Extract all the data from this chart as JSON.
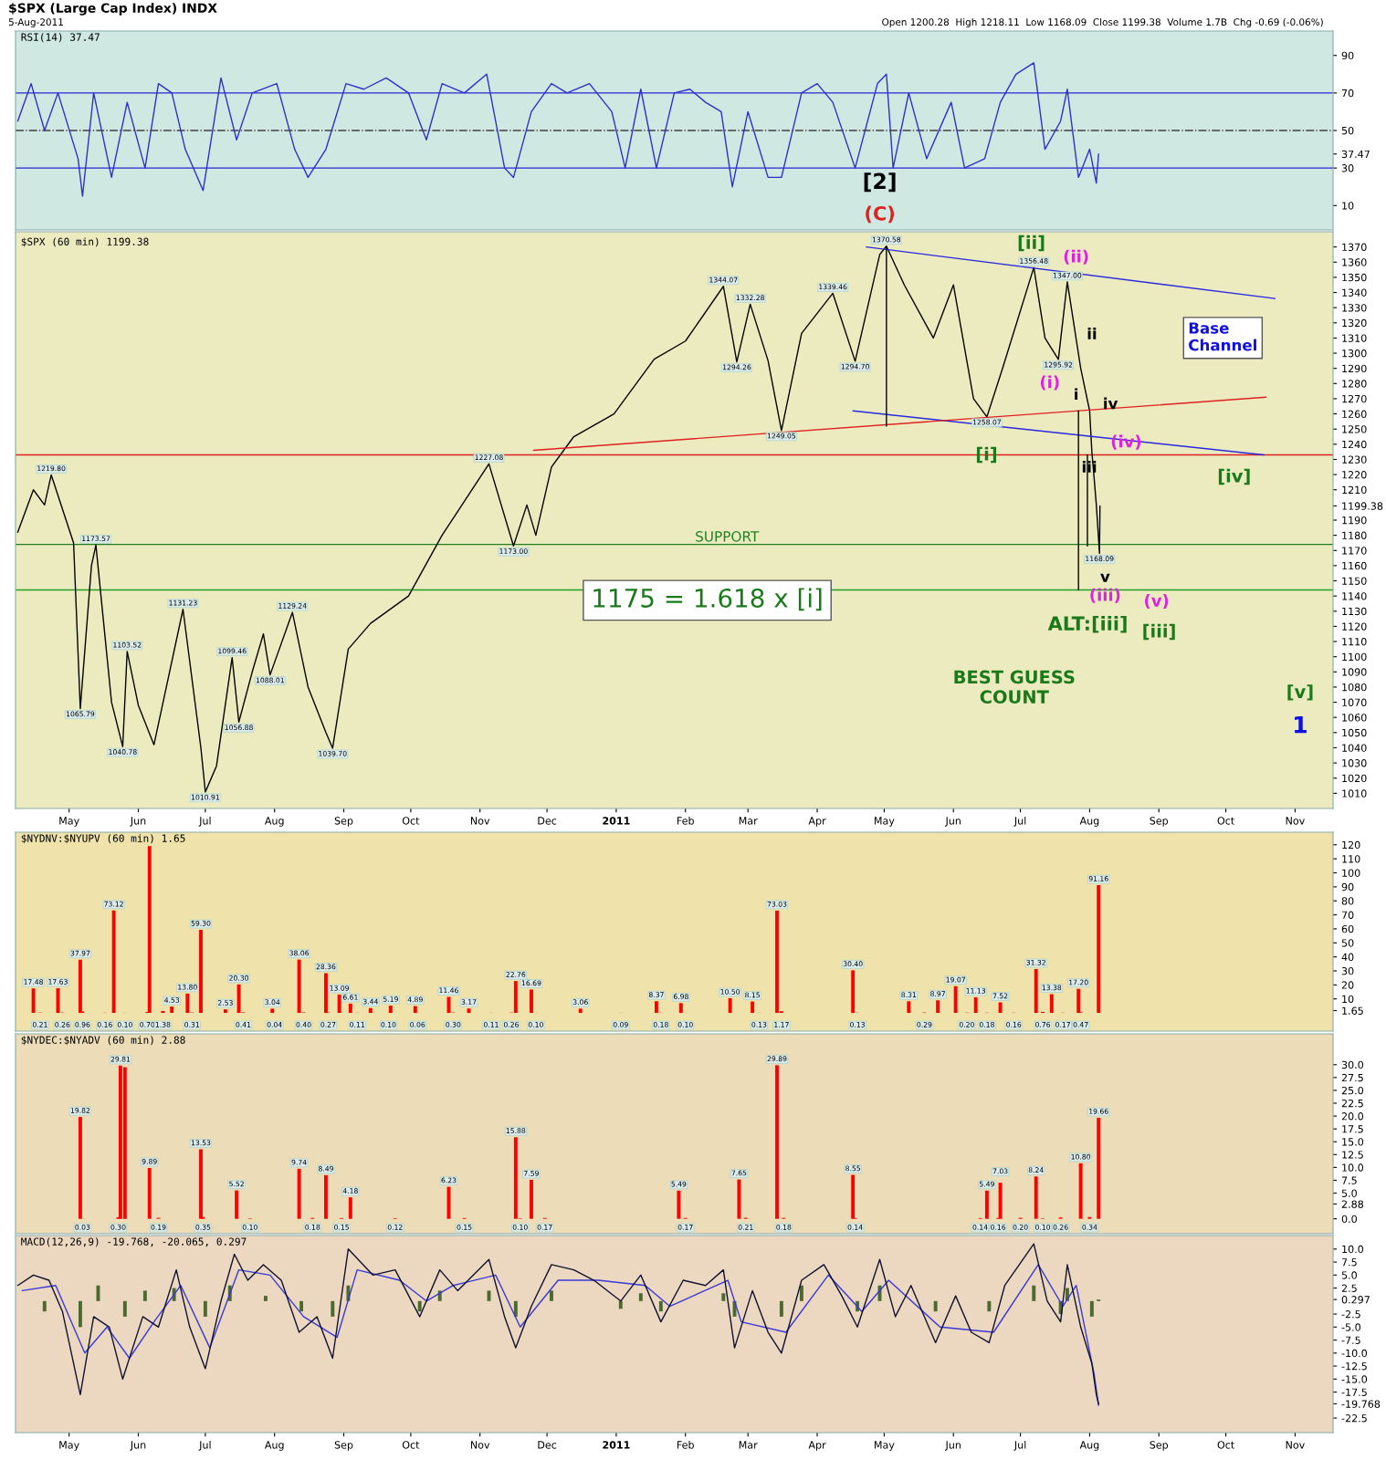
{
  "chart_data": [
    {
      "type": "line",
      "title": "RSI(14) 37.47",
      "annotations": [
        "$SPX (Large Cap Index) INDX",
        "5-Aug-2011",
        "Open 1200.28  High 1218.11  Low 1168.09  Close 1199.38  Volume 1.7B  Chg -0.69 (-0.06%)",
        "[2]",
        "(C)"
      ],
      "xlim": [
        "2010-04-07",
        "2011-11-18"
      ],
      "tick_labels": "y",
      "ylim": [
        -3,
        103
      ],
      "yticks": [
        10,
        30,
        {
          "value": 37.47,
          "label": "37.47"
        },
        50,
        70,
        90
      ],
      "ref_lines": [
        {
          "axis": "y",
          "value": 70,
          "color": "#2828d0",
          "line_style": "solid"
        },
        {
          "axis": "y",
          "value": 50,
          "color": "#404040",
          "line_style": "dashdot"
        },
        {
          "axis": "y",
          "value": 30,
          "color": "#2828d0",
          "line_style": "solid"
        }
      ],
      "series": [
        {
          "color": "#3030c8",
          "x": [
            "2010-04-08",
            "2010-04-14",
            "2010-04-20",
            "2010-04-26",
            "2010-05-05",
            "2010-05-07",
            "2010-05-12",
            "2010-05-20",
            "2010-05-27",
            "2010-06-04",
            "2010-06-10",
            "2010-06-16",
            "2010-06-22",
            "2010-06-30",
            "2010-07-08",
            "2010-07-15",
            "2010-07-22",
            "2010-08-02",
            "2010-08-10",
            "2010-08-16",
            "2010-08-24",
            "2010-09-02",
            "2010-09-10",
            "2010-09-20",
            "2010-09-30",
            "2010-10-08",
            "2010-10-15",
            "2010-10-25",
            "2010-11-04",
            "2010-11-12",
            "2010-11-16",
            "2010-11-24",
            "2010-12-03",
            "2010-12-10",
            "2010-12-20",
            "2010-12-30",
            "2011-01-05",
            "2011-01-12",
            "2011-01-19",
            "2011-01-27",
            "2011-02-03",
            "2011-02-10",
            "2011-02-17",
            "2011-02-22",
            "2011-03-01",
            "2011-03-10",
            "2011-03-16",
            "2011-03-25",
            "2011-04-01",
            "2011-04-08",
            "2011-04-18",
            "2011-04-28",
            "2011-05-02",
            "2011-05-05",
            "2011-05-12",
            "2011-05-20",
            "2011-05-31",
            "2011-06-06",
            "2011-06-15",
            "2011-06-22",
            "2011-06-29",
            "2011-07-07",
            "2011-07-12",
            "2011-07-19",
            "2011-07-22",
            "2011-07-27",
            "2011-08-01",
            "2011-08-04",
            "2011-08-05"
          ],
          "values": [
            55,
            75,
            50,
            70,
            35,
            15,
            70,
            25,
            65,
            30,
            75,
            70,
            40,
            18,
            78,
            45,
            70,
            75,
            40,
            25,
            40,
            75,
            72,
            78,
            70,
            45,
            75,
            70,
            80,
            30,
            25,
            60,
            75,
            70,
            75,
            60,
            30,
            72,
            30,
            70,
            72,
            65,
            60,
            20,
            60,
            25,
            25,
            70,
            75,
            65,
            30,
            75,
            80,
            30,
            70,
            35,
            65,
            30,
            35,
            65,
            80,
            86,
            40,
            55,
            72,
            25,
            40,
            22,
            37.47
          ]
        }
      ]
    },
    {
      "type": "line",
      "title": "$SPX (60 min) 1199.38",
      "xlim": [
        "2010-04-07",
        "2011-11-18"
      ],
      "xticks": [
        {
          "value": "2010-05-01",
          "label": "May"
        },
        {
          "value": "2010-06-01",
          "label": "Jun"
        },
        {
          "value": "2010-07-01",
          "label": "Jul"
        },
        {
          "value": "2010-08-01",
          "label": "Aug"
        },
        {
          "value": "2010-09-01",
          "label": "Sep"
        },
        {
          "value": "2010-10-01",
          "label": "Oct"
        },
        {
          "value": "2010-11-01",
          "label": "Nov"
        },
        {
          "value": "2010-12-01",
          "label": "Dec"
        },
        {
          "value": "2011-01-01",
          "label": "2011"
        },
        {
          "value": "2011-02-01",
          "label": "Feb"
        },
        {
          "value": "2011-03-01",
          "label": "Mar"
        },
        {
          "value": "2011-04-01",
          "label": "Apr"
        },
        {
          "value": "2011-05-01",
          "label": "May"
        },
        {
          "value": "2011-06-01",
          "label": "Jun"
        },
        {
          "value": "2011-07-01",
          "label": "Jul"
        },
        {
          "value": "2011-08-01",
          "label": "Aug"
        },
        {
          "value": "2011-09-01",
          "label": "Sep"
        },
        {
          "value": "2011-10-01",
          "label": "Oct"
        },
        {
          "value": "2011-11-01",
          "label": "Nov"
        }
      ],
      "ylim": [
        1000,
        1380
      ],
      "yticks": [
        1010,
        1020,
        1030,
        1040,
        1050,
        1060,
        1070,
        1080,
        1090,
        1100,
        1110,
        1120,
        1130,
        1140,
        1150,
        1160,
        1170,
        1180,
        1190,
        {
          "value": 1199.38,
          "label": "1199.38"
        },
        1210,
        1220,
        1230,
        1240,
        1250,
        1260,
        1270,
        1280,
        1290,
        1300,
        1310,
        1320,
        1330,
        1340,
        1350,
        1360,
        1370
      ],
      "ref_lines": [
        {
          "axis": "y",
          "value": 1233,
          "color": "#e02020",
          "line_style": "solid"
        },
        {
          "axis": "y",
          "value": 1174,
          "color": "#208020",
          "line_style": "solid",
          "label": "SUPPORT"
        },
        {
          "axis": "y",
          "value": 1144,
          "color": "#20a020",
          "line_style": "solid"
        }
      ],
      "annotations": [
        "[ii]",
        "(ii)",
        "ii",
        "(i)",
        "i",
        "iv",
        "(iv)",
        "[i]",
        "iii",
        "[iv]",
        "v",
        "(iii)",
        "(v)",
        "ALT:[iii]",
        "[iii]",
        "BEST GUESS\nCOUNT",
        "[v]",
        "1",
        "Base\nChannel",
        "1175 = 1.618 x [i]"
      ],
      "series": [
        {
          "color": "#000000",
          "x": [
            "2010-04-08",
            "2010-04-15",
            "2010-04-20",
            "2010-04-23",
            "2010-05-03",
            "2010-05-06",
            "2010-05-11",
            "2010-05-13",
            "2010-05-20",
            "2010-05-25",
            "2010-05-27",
            "2010-06-01",
            "2010-06-08",
            "2010-06-21",
            "2010-06-29",
            "2010-07-01",
            "2010-07-06",
            "2010-07-13",
            "2010-07-16",
            "2010-07-22",
            "2010-07-27",
            "2010-07-30",
            "2010-08-09",
            "2010-08-16",
            "2010-08-24",
            "2010-08-27",
            "2010-09-03",
            "2010-09-13",
            "2010-09-30",
            "2010-10-15",
            "2010-11-05",
            "2010-11-16",
            "2010-11-22",
            "2010-11-26",
            "2010-12-03",
            "2010-12-13",
            "2010-12-31",
            "2011-01-18",
            "2011-02-01",
            "2011-02-18",
            "2011-02-24",
            "2011-03-02",
            "2011-03-10",
            "2011-03-16",
            "2011-03-25",
            "2011-04-08",
            "2011-04-18",
            "2011-04-29",
            "2011-05-02",
            "2011-05-10",
            "2011-05-23",
            "2011-06-01",
            "2011-06-10",
            "2011-06-16",
            "2011-06-23",
            "2011-07-07",
            "2011-07-12",
            "2011-07-18",
            "2011-07-22",
            "2011-07-28",
            "2011-08-01",
            "2011-08-02",
            "2011-08-03",
            "2011-08-04",
            "2011-08-05T10:00",
            "2011-08-05T15:00"
          ],
          "values": [
            1182,
            1210,
            1200,
            1219.8,
            1175,
            1065.79,
            1160,
            1173.57,
            1070,
            1040.78,
            1103.52,
            1068,
            1042,
            1131.23,
            1040,
            1010.91,
            1028,
            1099.46,
            1056.88,
            1090,
            1115,
            1088.01,
            1129.24,
            1080,
            1050,
            1039.7,
            1105,
            1122,
            1140,
            1180,
            1227.08,
            1173.0,
            1200,
            1180,
            1225,
            1245,
            1260,
            1296,
            1308,
            1344.07,
            1294.26,
            1332.28,
            1295,
            1249.05,
            1313,
            1339.46,
            1294.7,
            1365,
            1370.58,
            1345,
            1310,
            1345,
            1270,
            1258.07,
            1290,
            1356.48,
            1310,
            1295.92,
            1347.0,
            1290,
            1262,
            1235,
            1218,
            1200,
            1168.09,
            1199.38
          ],
          "value_labels": [
            null,
            null,
            null,
            "1219.80",
            null,
            "1065.79",
            null,
            "1173.57",
            null,
            "1040.78",
            "1103.52",
            null,
            null,
            "1131.23",
            null,
            "1010.91",
            null,
            "1099.46",
            "1056.88",
            null,
            null,
            "1088.01",
            "1129.24",
            null,
            null,
            "1039.70",
            null,
            null,
            null,
            null,
            "1227.08",
            "1173.00",
            null,
            null,
            null,
            null,
            null,
            null,
            null,
            "1344.07",
            "1294.26",
            "1332.28",
            null,
            "1249.05",
            null,
            "1339.46",
            "1294.70",
            null,
            "1370.58",
            null,
            null,
            null,
            null,
            "1258.07",
            null,
            "1356.48",
            null,
            "1295.92",
            "1347.00",
            null,
            null,
            null,
            null,
            null,
            "1168.09",
            null
          ]
        },
        {
          "color": "#2828e0",
          "x": [
            "2011-04-23",
            "2011-10-23"
          ],
          "values": [
            1370,
            1336
          ]
        },
        {
          "color": "#2828e0",
          "x": [
            "2011-04-17",
            "2011-10-18"
          ],
          "values": [
            1262,
            1233
          ]
        },
        {
          "color": "#e02020",
          "x": [
            "2010-11-25",
            "2011-10-19"
          ],
          "values": [
            1236,
            1271
          ]
        },
        {
          "color": "#000000",
          "x": [
            "2011-05-02",
            "2011-05-02"
          ],
          "values": [
            1370,
            1252
          ]
        },
        {
          "color": "#000000",
          "x": [
            "2011-07-27",
            "2011-07-27"
          ],
          "values": [
            1262,
            1144
          ]
        },
        {
          "color": "#000000",
          "x": [
            "2011-07-31",
            "2011-07-31"
          ],
          "values": [
            1233,
            1173
          ]
        }
      ]
    },
    {
      "type": "bar",
      "title": "$NYDNV:$NYUPV (60 min) 1.65",
      "xlim": [
        "2010-04-07",
        "2011-11-18"
      ],
      "tick_labels": "y",
      "ylim": [
        -13,
        129
      ],
      "yticks": [
        {
          "value": 1.65,
          "label": "1.65"
        },
        10,
        20,
        30,
        40,
        50,
        60,
        70,
        80,
        90,
        100,
        110,
        120
      ],
      "series": [
        {
          "color": "#ff0000",
          "x": [
            "2010-04-15",
            "2010-04-18",
            "2010-04-26",
            "2010-04-28",
            "2010-05-06",
            "2010-05-07",
            "2010-05-17",
            "2010-05-21",
            "2010-05-26",
            "2010-06-05",
            "2010-06-06",
            "2010-06-12",
            "2010-06-16",
            "2010-06-23",
            "2010-06-25",
            "2010-06-29",
            "2010-07-10",
            "2010-07-16",
            "2010-07-18",
            "2010-07-31",
            "2010-08-01",
            "2010-08-12",
            "2010-08-14",
            "2010-08-24",
            "2010-08-25",
            "2010-08-30",
            "2010-09-04",
            "2010-09-07",
            "2010-09-13",
            "2010-09-21",
            "2010-09-22",
            "2010-10-03",
            "2010-10-04",
            "2010-10-18",
            "2010-10-20",
            "2010-10-27",
            "2010-11-06",
            "2010-11-15",
            "2010-11-17",
            "2010-11-24",
            "2010-11-26",
            "2010-12-16",
            "2011-01-03",
            "2011-01-19",
            "2011-01-21",
            "2011-01-30",
            "2011-02-01",
            "2011-02-21",
            "2011-03-03",
            "2011-03-06",
            "2011-03-14",
            "2011-03-16",
            "2011-04-17",
            "2011-04-19",
            "2011-05-12",
            "2011-05-19",
            "2011-05-25",
            "2011-06-02",
            "2011-06-07",
            "2011-06-11",
            "2011-06-16",
            "2011-06-22",
            "2011-06-28",
            "2011-07-08",
            "2011-07-11",
            "2011-07-15",
            "2011-07-20",
            "2011-07-27",
            "2011-07-28",
            "2011-08-05"
          ],
          "values": [
            17.48,
            0.21,
            17.63,
            0.26,
            37.97,
            0.96,
            0.16,
            73.12,
            0.1,
            0.7,
            119,
            1.38,
            4.53,
            13.8,
            0.31,
            59.3,
            2.53,
            20.3,
            0.41,
            3.04,
            0.04,
            38.06,
            0.4,
            28.36,
            0.27,
            13.09,
            6.61,
            0.11,
            3.44,
            0.1,
            5.19,
            4.89,
            0.06,
            11.46,
            0.3,
            3.17,
            0.11,
            0.26,
            22.76,
            16.69,
            0.1,
            3.06,
            0.09,
            8.37,
            0.18,
            6.98,
            0.1,
            10.5,
            8.15,
            0.13,
            73.03,
            1.17,
            30.4,
            0.13,
            8.31,
            0.29,
            8.97,
            19.07,
            0.2,
            11.13,
            0.18,
            7.52,
            0.16,
            31.32,
            0.76,
            13.38,
            0.17,
            17.2,
            0.47,
            91.16
          ],
          "value_labels": [
            "17.48",
            "0.21",
            "17.63",
            "0.26",
            "37.97",
            "0.96",
            "0.16",
            "73.12",
            "0.10",
            "0.70",
            null,
            "1.38",
            "4.53",
            "13.80",
            "0.31",
            "59.30",
            "2.53",
            "20.30",
            "0.41",
            "3.04",
            "0.04",
            "38.06",
            "0.40",
            "28.36",
            "0.27",
            "13.09",
            "6.61",
            "0.11",
            "3.44",
            "0.10",
            "5.19",
            "4.89",
            "0.06",
            "11.46",
            "0.30",
            "3.17",
            "0.11",
            "0.26",
            "22.76",
            "16.69",
            "0.10",
            "3.06",
            "0.09",
            "8.37",
            "0.18",
            "6.98",
            "0.10",
            "10.50",
            "8.15",
            "0.13",
            "73.03",
            "1.17",
            "30.40",
            "0.13",
            "8.31",
            "0.29",
            "8.97",
            "19.07",
            "0.20",
            "11.13",
            "0.18",
            "7.52",
            "0.16",
            "31.32",
            "0.76",
            "13.38",
            "0.17",
            "17.20",
            "0.47",
            "91.16"
          ]
        }
      ]
    },
    {
      "type": "bar",
      "title": "$NYDEC:$NYADV (60 min) 2.88",
      "xlim": [
        "2010-04-07",
        "2011-11-18"
      ],
      "tick_labels": "y",
      "ylim": [
        -2.9,
        36
      ],
      "yticks": [
        {
          "value": 0,
          "label": "0.0"
        },
        {
          "value": 2.88,
          "label": "2.88"
        },
        {
          "value": 5,
          "label": "5.0"
        },
        7.5,
        {
          "value": 10,
          "label": "10.0"
        },
        12.5,
        {
          "value": 15,
          "label": "15.0"
        },
        17.5,
        {
          "value": 20,
          "label": "20.0"
        },
        22.5,
        {
          "value": 25,
          "label": "25.0"
        },
        27.5,
        {
          "value": 30,
          "label": "30.0"
        }
      ],
      "series": [
        {
          "color": "#ff0000",
          "x": [
            "2010-05-06",
            "2010-05-07",
            "2010-05-23",
            "2010-05-24",
            "2010-05-26",
            "2010-06-06",
            "2010-06-10",
            "2010-06-29",
            "2010-06-30",
            "2010-07-15",
            "2010-07-21",
            "2010-08-12",
            "2010-08-18",
            "2010-08-24",
            "2010-08-31",
            "2010-09-04",
            "2010-09-24",
            "2010-10-18",
            "2010-10-25",
            "2010-11-17",
            "2010-11-19",
            "2010-11-24",
            "2010-11-30",
            "2011-01-29",
            "2011-02-01",
            "2011-02-25",
            "2011-02-28",
            "2011-03-14",
            "2011-03-17",
            "2011-04-17",
            "2011-04-18",
            "2011-06-13",
            "2011-06-16",
            "2011-06-21",
            "2011-06-22",
            "2011-07-01",
            "2011-07-08",
            "2011-07-11",
            "2011-07-19",
            "2011-07-28",
            "2011-08-01",
            "2011-08-05"
          ],
          "values": [
            19.82,
            0.03,
            0.3,
            29.81,
            29.5,
            9.89,
            0.19,
            13.53,
            0.35,
            5.52,
            0.1,
            9.74,
            0.18,
            8.49,
            0.15,
            4.18,
            0.12,
            6.23,
            0.15,
            15.88,
            0.1,
            7.59,
            0.17,
            5.49,
            0.17,
            7.65,
            0.21,
            29.89,
            0.18,
            8.55,
            0.14,
            0.14,
            5.49,
            0.16,
            7.03,
            0.2,
            8.24,
            0.1,
            0.26,
            10.8,
            0.34,
            19.66
          ],
          "value_labels": [
            "19.82",
            "0.03",
            "0.30",
            "29.81",
            null,
            "9.89",
            "0.19",
            "13.53",
            "0.35",
            "5.52",
            "0.10",
            "9.74",
            "0.18",
            "8.49",
            "0.15",
            "4.18",
            "0.12",
            "6.23",
            "0.15",
            "15.88",
            "0.10",
            "7.59",
            "0.17",
            "5.49",
            "0.17",
            "7.65",
            "0.21",
            "29.89",
            "0.18",
            "8.55",
            "0.14",
            "0.14",
            "5.49",
            "0.16",
            "7.03",
            "0.20",
            "8.24",
            "0.10",
            "0.26",
            "10.80",
            "0.34",
            "19.66"
          ]
        }
      ]
    },
    {
      "type": "line",
      "title": "MACD(12,26,9) -19.768, -20.065, 0.297",
      "xlim": [
        "2010-04-07",
        "2011-11-18"
      ],
      "xticks": [
        {
          "value": "2010-05-01",
          "label": "May"
        },
        {
          "value": "2010-06-01",
          "label": "Jun"
        },
        {
          "value": "2010-07-01",
          "label": "Jul"
        },
        {
          "value": "2010-08-01",
          "label": "Aug"
        },
        {
          "value": "2010-09-01",
          "label": "Sep"
        },
        {
          "value": "2010-10-01",
          "label": "Oct"
        },
        {
          "value": "2010-11-01",
          "label": "Nov"
        },
        {
          "value": "2010-12-01",
          "label": "Dec"
        },
        {
          "value": "2011-01-01",
          "label": "2011"
        },
        {
          "value": "2011-02-01",
          "label": "Feb"
        },
        {
          "value": "2011-03-01",
          "label": "Mar"
        },
        {
          "value": "2011-04-01",
          "label": "Apr"
        },
        {
          "value": "2011-05-01",
          "label": "May"
        },
        {
          "value": "2011-06-01",
          "label": "Jun"
        },
        {
          "value": "2011-07-01",
          "label": "Jul"
        },
        {
          "value": "2011-08-01",
          "label": "Aug"
        },
        {
          "value": "2011-09-01",
          "label": "Sep"
        },
        {
          "value": "2011-10-01",
          "label": "Oct"
        },
        {
          "value": "2011-11-01",
          "label": "Nov"
        }
      ],
      "ylim": [
        -25.3,
        12.6
      ],
      "yticks": [
        -22.5,
        {
          "value": -19.768,
          "label": "-19.768"
        },
        -17.5,
        {
          "value": -15,
          "label": "-15.0"
        },
        -12.5,
        {
          "value": -10,
          "label": "-10.0"
        },
        -7.5,
        {
          "value": -5,
          "label": "-5.0"
        },
        -2.5,
        {
          "value": 0.297,
          "label": "0.297"
        },
        2.5,
        {
          "value": 5,
          "label": "5.0"
        },
        7.5,
        {
          "value": 10,
          "label": "10.0"
        }
      ],
      "series": [
        {
          "type": "bar",
          "color": "#4a6a30",
          "x": [
            "2010-04-20",
            "2010-05-06",
            "2010-05-14",
            "2010-05-26",
            "2010-06-04",
            "2010-06-17",
            "2010-07-01",
            "2010-07-12",
            "2010-07-28",
            "2010-08-13",
            "2010-08-27",
            "2010-09-03",
            "2010-10-05",
            "2010-10-14",
            "2010-11-05",
            "2010-11-17",
            "2010-12-03",
            "2011-01-03",
            "2011-01-12",
            "2011-01-21",
            "2011-02-18",
            "2011-02-23",
            "2011-03-16",
            "2011-03-25",
            "2011-04-19",
            "2011-04-29",
            "2011-05-24",
            "2011-06-17",
            "2011-07-07",
            "2011-07-19",
            "2011-07-22",
            "2011-08-02",
            "2011-08-05"
          ],
          "values": [
            -2,
            -5,
            3,
            -3,
            2,
            2.5,
            -3,
            3,
            1,
            -2,
            -3,
            3,
            -2,
            2,
            2,
            -3,
            2,
            -1.5,
            1.5,
            -2,
            1.5,
            -3,
            -3,
            3,
            -2,
            3,
            -2,
            -2,
            3,
            -2.5,
            2.5,
            -3,
            0.297
          ]
        },
        {
          "color": "#3838d8",
          "x": [
            "2010-04-10",
            "2010-04-25",
            "2010-05-08",
            "2010-05-18",
            "2010-05-28",
            "2010-06-08",
            "2010-06-20",
            "2010-07-03",
            "2010-07-16",
            "2010-07-30",
            "2010-08-14",
            "2010-08-29",
            "2010-09-07",
            "2010-09-26",
            "2010-10-08",
            "2010-10-20",
            "2010-11-08",
            "2010-11-19",
            "2010-12-06",
            "2010-12-24",
            "2011-01-14",
            "2011-01-25",
            "2011-02-20",
            "2011-02-26",
            "2011-03-18",
            "2011-04-06",
            "2011-04-21",
            "2011-05-03",
            "2011-05-26",
            "2011-06-19",
            "2011-07-09",
            "2011-07-20",
            "2011-07-26",
            "2011-08-03",
            "2011-08-05"
          ],
          "values": [
            2,
            3,
            -10,
            -5,
            -11,
            -4,
            3,
            -9,
            6,
            5,
            -3,
            -7,
            6,
            4,
            0,
            3,
            5,
            -5,
            4,
            4,
            3,
            -1,
            4,
            -4,
            -6,
            5,
            -2,
            4,
            -5,
            -6,
            7,
            -1,
            3,
            -14,
            -20.065
          ]
        },
        {
          "color": "#101030",
          "x": [
            "2010-04-08",
            "2010-04-15",
            "2010-04-22",
            "2010-04-28",
            "2010-05-06",
            "2010-05-12",
            "2010-05-19",
            "2010-05-25",
            "2010-06-03",
            "2010-06-10",
            "2010-06-18",
            "2010-06-24",
            "2010-07-01",
            "2010-07-08",
            "2010-07-14",
            "2010-07-20",
            "2010-07-27",
            "2010-08-04",
            "2010-08-12",
            "2010-08-20",
            "2010-08-27",
            "2010-09-03",
            "2010-09-14",
            "2010-09-24",
            "2010-10-05",
            "2010-10-14",
            "2010-10-22",
            "2010-11-05",
            "2010-11-12",
            "2010-11-17",
            "2010-11-24",
            "2010-12-03",
            "2010-12-13",
            "2010-12-22",
            "2011-01-03",
            "2011-01-12",
            "2011-01-21",
            "2011-01-31",
            "2011-02-10",
            "2011-02-18",
            "2011-02-23",
            "2011-03-03",
            "2011-03-10",
            "2011-03-16",
            "2011-03-25",
            "2011-04-04",
            "2011-04-12",
            "2011-04-19",
            "2011-04-29",
            "2011-05-06",
            "2011-05-13",
            "2011-05-24",
            "2011-06-02",
            "2011-06-09",
            "2011-06-17",
            "2011-06-24",
            "2011-07-07",
            "2011-07-13",
            "2011-07-19",
            "2011-07-22",
            "2011-07-28",
            "2011-08-02",
            "2011-08-04",
            "2011-08-05"
          ],
          "values": [
            3,
            5,
            4,
            -2,
            -18,
            -3,
            -5,
            -15,
            -3,
            -5,
            6,
            -5,
            -13,
            0,
            9,
            4,
            7,
            4,
            -6,
            -3,
            -11,
            10,
            5,
            6,
            -3,
            6,
            2,
            8,
            -3,
            -9,
            -1,
            7,
            6,
            4,
            0,
            5,
            -4,
            4,
            3,
            6,
            -9,
            2,
            -6,
            -10,
            4,
            7,
            1,
            -5,
            8,
            -3,
            3,
            -8,
            1,
            -6,
            -8,
            3,
            11,
            0,
            -4,
            7,
            -5,
            -12,
            -18,
            -19.768
          ]
        }
      ]
    }
  ]
}
